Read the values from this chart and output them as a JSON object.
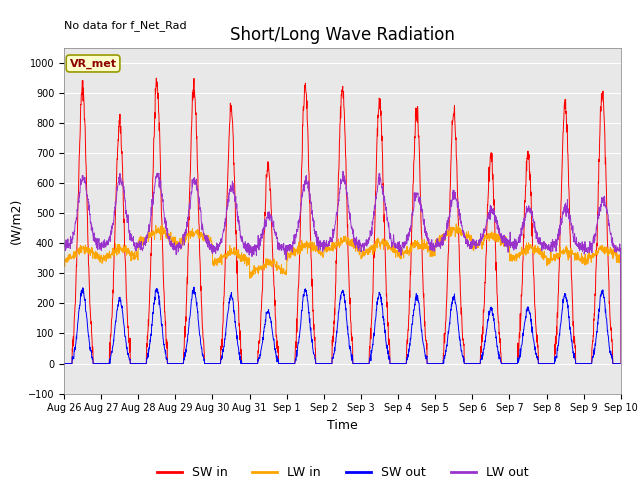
{
  "title": "Short/Long Wave Radiation",
  "xlabel": "Time",
  "ylabel": "(W/m2)",
  "top_left_text": "No data for f_Net_Rad",
  "box_label": "VR_met",
  "ylim": [
    -100,
    1050
  ],
  "yticks": [
    -100,
    0,
    100,
    200,
    300,
    400,
    500,
    600,
    700,
    800,
    900,
    1000
  ],
  "colors": {
    "SW_in": "#ff0000",
    "LW_in": "#ffa500",
    "SW_out": "#0000ff",
    "LW_out": "#9933cc"
  },
  "legend_labels": [
    "SW in",
    "LW in",
    "SW out",
    "LW out"
  ],
  "background_color": "#e8e8e8",
  "title_fontsize": 12,
  "axis_fontsize": 9,
  "tick_fontsize": 7,
  "legend_fontsize": 9,
  "linewidth": 0.7,
  "n_days": 15,
  "sw_in_peaks": [
    920,
    800,
    930,
    920,
    845,
    650,
    920,
    920,
    875,
    840,
    840,
    690,
    700,
    860,
    895
  ],
  "lw_in_base": [
    340,
    345,
    400,
    395,
    330,
    295,
    355,
    370,
    360,
    355,
    405,
    385,
    345,
    335,
    340
  ],
  "lw_out_base": [
    395,
    390,
    390,
    388,
    382,
    378,
    388,
    395,
    390,
    388,
    395,
    400,
    392,
    382,
    378
  ],
  "lw_out_peaks": [
    615,
    615,
    625,
    610,
    590,
    495,
    610,
    620,
    610,
    565,
    560,
    510,
    515,
    520,
    545
  ],
  "sw_ratio": 0.265,
  "tick_labels": [
    "Aug 26",
    "Aug 27",
    "Aug 28",
    "Aug 29",
    "Aug 30",
    "Aug 31",
    "Sep 1",
    "Sep 2",
    "Sep 3",
    "Sep 4",
    "Sep 5",
    "Sep 6",
    "Sep 7",
    "Sep 8",
    "Sep 9",
    "Sep 10"
  ]
}
